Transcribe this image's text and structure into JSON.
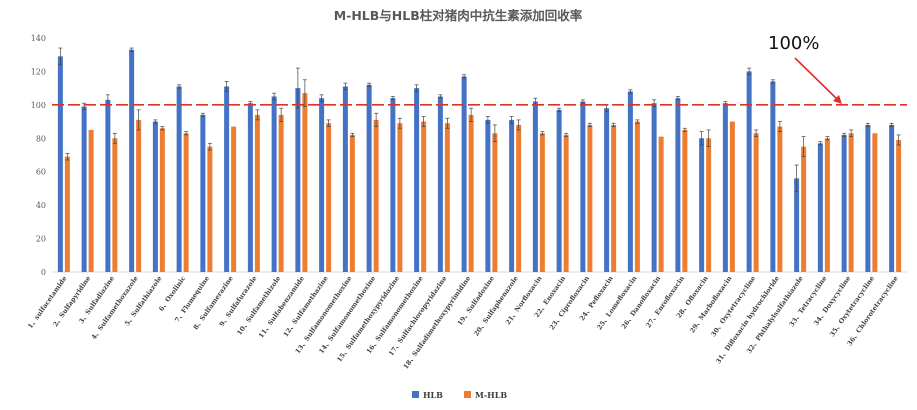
{
  "chart_data": {
    "type": "bar",
    "title": "M-HLB与HLB柱对猪肉中抗生素添加回收率",
    "ylim": [
      0,
      140
    ],
    "yticks": [
      0,
      20,
      40,
      60,
      80,
      100,
      120,
      140
    ],
    "grid": false,
    "legend_position": "bottom-center",
    "categories": [
      "1、sulfacetamide",
      "2、Sulfapyridine",
      "3、Sulfadiazine",
      "4、Sulfamethoxazole",
      "5、Sulfathiazole",
      "6、Oxolinic",
      "7、Flumequine",
      "8、Sulfamerazine",
      "9、Sulfafurazole",
      "10、Sulfamethizole",
      "11、Sulfabenzamide",
      "12、Sulfamethazine",
      "13、Sulfamonomethoxine",
      "14、Sulfamonomethoxine",
      "15、Sulfamethoxypyridazine",
      "16、Sulfamonomethoxine",
      "17、Sulfachloropyridazine",
      "18、Sulfadimethoxypyrimidine",
      "19、Sulfadoxine",
      "20、Sulfaphenazole",
      "21、Norfloxacin",
      "22、Enoxacin",
      "23、Ciprofloxacin",
      "24、Pefloxacin",
      "25、Lomefloxacin",
      "26、Danofloxacin",
      "27、Enrofloxacin",
      "28、Ofloxacin",
      "29、Marbofloxacin",
      "30、Oxytetracycline",
      "31、Difloxacin hydrochloride",
      "32、Phthalylsulfathiazole",
      "33、Tetracycline",
      "34、Doxycycline",
      "35、Oxytetracycline",
      "36、Chlorotetracycline"
    ],
    "series": [
      {
        "name": "HLB",
        "color": "#4472C4",
        "values": [
          129,
          99,
          103,
          133,
          90,
          111,
          94,
          111,
          101,
          105,
          110,
          104,
          111,
          112,
          104,
          110,
          105,
          117,
          91,
          91,
          102,
          97,
          102,
          98,
          108,
          101,
          104,
          80,
          101,
          120,
          114,
          56,
          77,
          82,
          88,
          88
        ],
        "errors": [
          5,
          2,
          3,
          1,
          1,
          1,
          1,
          3,
          1,
          2,
          12,
          2,
          2,
          1,
          1,
          2,
          1,
          1,
          2,
          2,
          2,
          1,
          1,
          2,
          1,
          2,
          1,
          4,
          1,
          2,
          1,
          8,
          1,
          1,
          1,
          1
        ]
      },
      {
        "name": "M-HLB",
        "color": "#ED7D31",
        "values": [
          69,
          85,
          80,
          91,
          86,
          83,
          75,
          87,
          94,
          94,
          107,
          89,
          82,
          91,
          89,
          90,
          89,
          94,
          83,
          88,
          83,
          82,
          88,
          88,
          90,
          81,
          85,
          80,
          90,
          83,
          87,
          75,
          80,
          83,
          83,
          79
        ],
        "errors": [
          2,
          0,
          3,
          6,
          1,
          1,
          2,
          0,
          3,
          4,
          8,
          2,
          1,
          4,
          3,
          3,
          3,
          4,
          5,
          3,
          1,
          1,
          1,
          1,
          1,
          0,
          1,
          5,
          0,
          2,
          3,
          6,
          1,
          2,
          0,
          3
        ]
      }
    ],
    "reference_line": {
      "value": 100,
      "color": "#E0302A"
    },
    "annotation": {
      "text": "100%",
      "arrow_color": "#E0302A"
    }
  }
}
